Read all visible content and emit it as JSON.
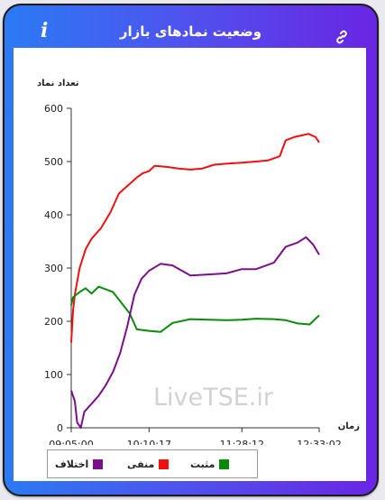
{
  "header": {
    "title": "وضعیت نمادهای بازار",
    "info_icon": "info-icon",
    "link_icon": "link-icon"
  },
  "watermark": "LiveTSE.ir",
  "colors": {
    "header_left": "#2b7af4",
    "header_right": "#6a25e3",
    "negative": "#f01010",
    "positive": "#0a8a0a",
    "difference": "#7a108a"
  },
  "chart_data": {
    "type": "line",
    "ylabel": "تعداد نماد",
    "xlabel": "زمان",
    "ylim": [
      0,
      600
    ],
    "yticks": [
      0,
      100,
      200,
      300,
      400,
      500,
      600
    ],
    "xlim": [
      "09:05:00",
      "12:33:02"
    ],
    "xticks": [
      "09:05:00",
      "10:10:17",
      "11:28:12",
      "12:33:02"
    ],
    "grid": false,
    "legend_position": "bottom",
    "series": [
      {
        "name": "منفی",
        "color": "#f01010",
        "x": [
          "09:05:00",
          "09:06:30",
          "09:08:00",
          "09:12:00",
          "09:17:00",
          "09:22:00",
          "09:30:00",
          "09:38:00",
          "09:45:00",
          "09:55:00",
          "10:00:00",
          "10:05:00",
          "10:10:17",
          "10:15:00",
          "10:25:00",
          "10:35:00",
          "10:45:00",
          "10:55:00",
          "11:05:00",
          "11:15:00",
          "11:28:12",
          "11:40:00",
          "11:50:00",
          "12:00:00",
          "12:05:00",
          "12:12:00",
          "12:18:00",
          "12:24:00",
          "12:30:00",
          "12:33:02"
        ],
        "values": [
          160,
          220,
          250,
          300,
          335,
          355,
          375,
          405,
          440,
          460,
          470,
          478,
          482,
          492,
          490,
          487,
          485,
          487,
          494,
          496,
          498,
          500,
          502,
          510,
          540,
          546,
          549,
          552,
          546,
          536
        ]
      },
      {
        "name": "مثبت",
        "color": "#0a8a0a",
        "x": [
          "09:05:00",
          "09:06:30",
          "09:12:00",
          "09:17:00",
          "09:22:00",
          "09:28:00",
          "09:34:00",
          "09:40:00",
          "09:47:00",
          "09:54:00",
          "10:00:00",
          "10:10:17",
          "10:20:00",
          "10:30:00",
          "10:45:00",
          "11:00:00",
          "11:15:00",
          "11:28:12",
          "11:40:00",
          "11:55:00",
          "12:05:00",
          "12:15:00",
          "12:25:00",
          "12:30:00",
          "12:33:02"
        ],
        "values": [
          230,
          245,
          255,
          262,
          252,
          265,
          260,
          255,
          235,
          215,
          185,
          182,
          180,
          197,
          204,
          203,
          202,
          203,
          205,
          204,
          202,
          196,
          194,
          205,
          211
        ]
      },
      {
        "name": "اختلاف",
        "color": "#7a108a",
        "x": [
          "09:05:00",
          "09:08:00",
          "09:10:00",
          "09:13:00",
          "09:16:00",
          "09:22:00",
          "09:28:00",
          "09:34:00",
          "09:40:00",
          "09:46:00",
          "09:52:00",
          "09:58:00",
          "10:04:00",
          "10:10:17",
          "10:20:00",
          "10:30:00",
          "10:45:00",
          "11:00:00",
          "11:15:00",
          "11:28:12",
          "11:40:00",
          "11:55:00",
          "12:05:00",
          "12:15:00",
          "12:22:00",
          "12:28:00",
          "12:33:02"
        ],
        "values": [
          70,
          50,
          10,
          0,
          30,
          45,
          60,
          80,
          105,
          140,
          190,
          250,
          280,
          295,
          308,
          305,
          286,
          288,
          290,
          298,
          298,
          310,
          340,
          348,
          358,
          344,
          325
        ]
      }
    ]
  }
}
